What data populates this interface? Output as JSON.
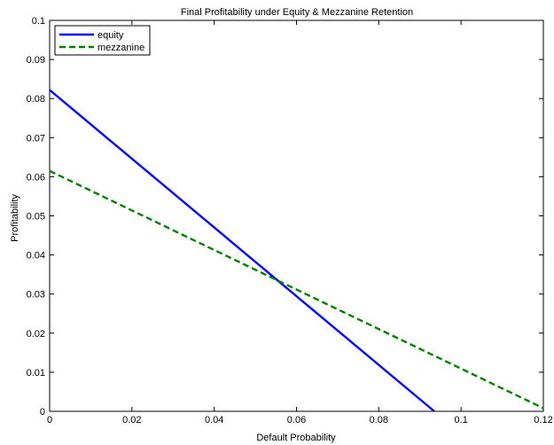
{
  "chart_data": {
    "type": "line",
    "title": "Final Profitability under Equity & Mezzanine Retention",
    "xlabel": "Default Probability",
    "ylabel": "Profitability",
    "xlim": [
      0,
      0.12
    ],
    "ylim": [
      0,
      0.1
    ],
    "xticks": [
      0,
      0.02,
      0.04,
      0.06,
      0.08,
      0.1,
      0.12
    ],
    "xtick_labels": [
      "0",
      "0.02",
      "0.04",
      "0.06",
      "0.08",
      "0.1",
      "0.12"
    ],
    "yticks": [
      0,
      0.01,
      0.02,
      0.03,
      0.04,
      0.05,
      0.06,
      0.07,
      0.08,
      0.09,
      0.1
    ],
    "ytick_labels": [
      "0",
      "0.01",
      "0.02",
      "0.03",
      "0.04",
      "0.05",
      "0.06",
      "0.07",
      "0.08",
      "0.09",
      "0.1"
    ],
    "grid": false,
    "legend_position": "top-left",
    "series": [
      {
        "name": "equity",
        "color": "#0000ff",
        "style": "solid",
        "x": [
          0,
          0.0935
        ],
        "y": [
          0.0822,
          0
        ]
      },
      {
        "name": "mezzanine",
        "color": "#008000",
        "style": "dashed",
        "x": [
          0,
          0.12
        ],
        "y": [
          0.0615,
          0.0008
        ]
      }
    ]
  }
}
